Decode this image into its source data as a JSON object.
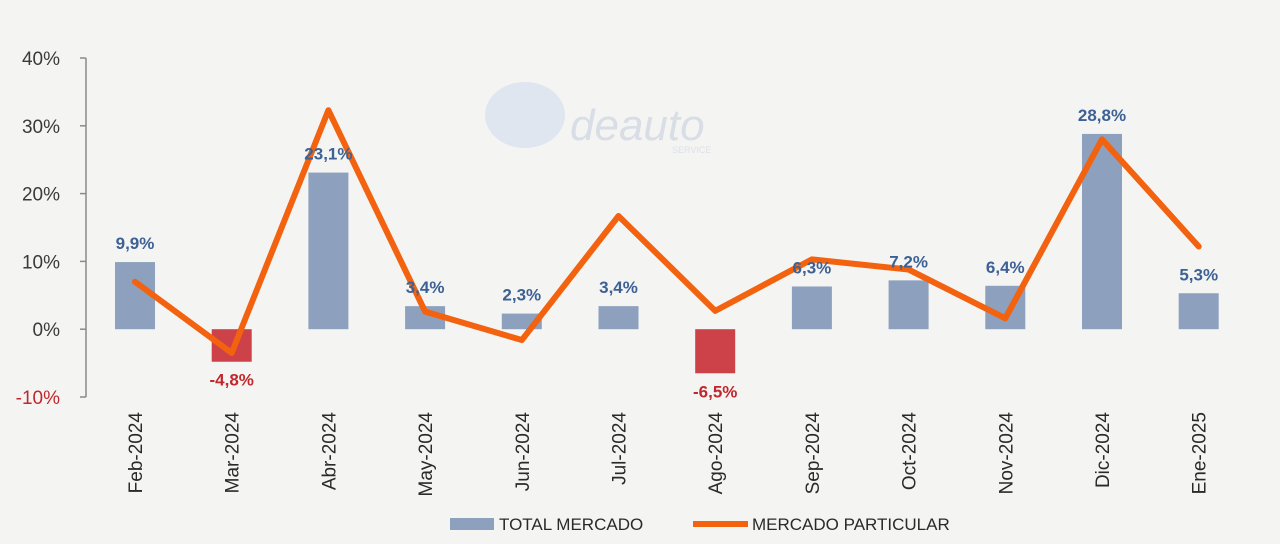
{
  "chart_data": {
    "type": "bar+line",
    "title": "",
    "xlabel": "",
    "ylabel": "",
    "ylim": [
      -10,
      40
    ],
    "yticks": [
      40,
      30,
      20,
      10,
      0,
      -10
    ],
    "ytick_labels": [
      "40%",
      "30%",
      "20%",
      "10%",
      "0%",
      "-10%"
    ],
    "categories": [
      "Feb-2024",
      "Mar-2024",
      "Abr-2024",
      "May-2024",
      "Jun-2024",
      "Jul-2024",
      "Ago-2024",
      "Sep-2024",
      "Oct-2024",
      "Nov-2024",
      "Dic-2024",
      "Ene-2025"
    ],
    "series": [
      {
        "name": "TOTAL MERCADO",
        "kind": "bar",
        "values": [
          9.9,
          -4.8,
          23.1,
          3.4,
          2.3,
          3.4,
          -6.5,
          6.3,
          7.2,
          6.4,
          28.8,
          5.3
        ],
        "labels": [
          "9,9%",
          "-4,8%",
          "23,1%",
          "3,4%",
          "2,3%",
          "3,4%",
          "-6,5%",
          "6,3%",
          "7,2%",
          "6,4%",
          "28,8%",
          "5,3%"
        ],
        "color": "#8da0bd",
        "negative_color": "#cd4248"
      },
      {
        "name": "MERCADO PARTICULAR",
        "kind": "line",
        "values": [
          7,
          -3.5,
          32.3,
          2.6,
          -1.6,
          16.7,
          2.7,
          10.3,
          8.8,
          1.6,
          28,
          12.2
        ],
        "color": "#f2620f"
      }
    ],
    "legend_position": "bottom",
    "grid": false
  },
  "watermark": {
    "text": "deauto",
    "sub": "SERVICE"
  }
}
